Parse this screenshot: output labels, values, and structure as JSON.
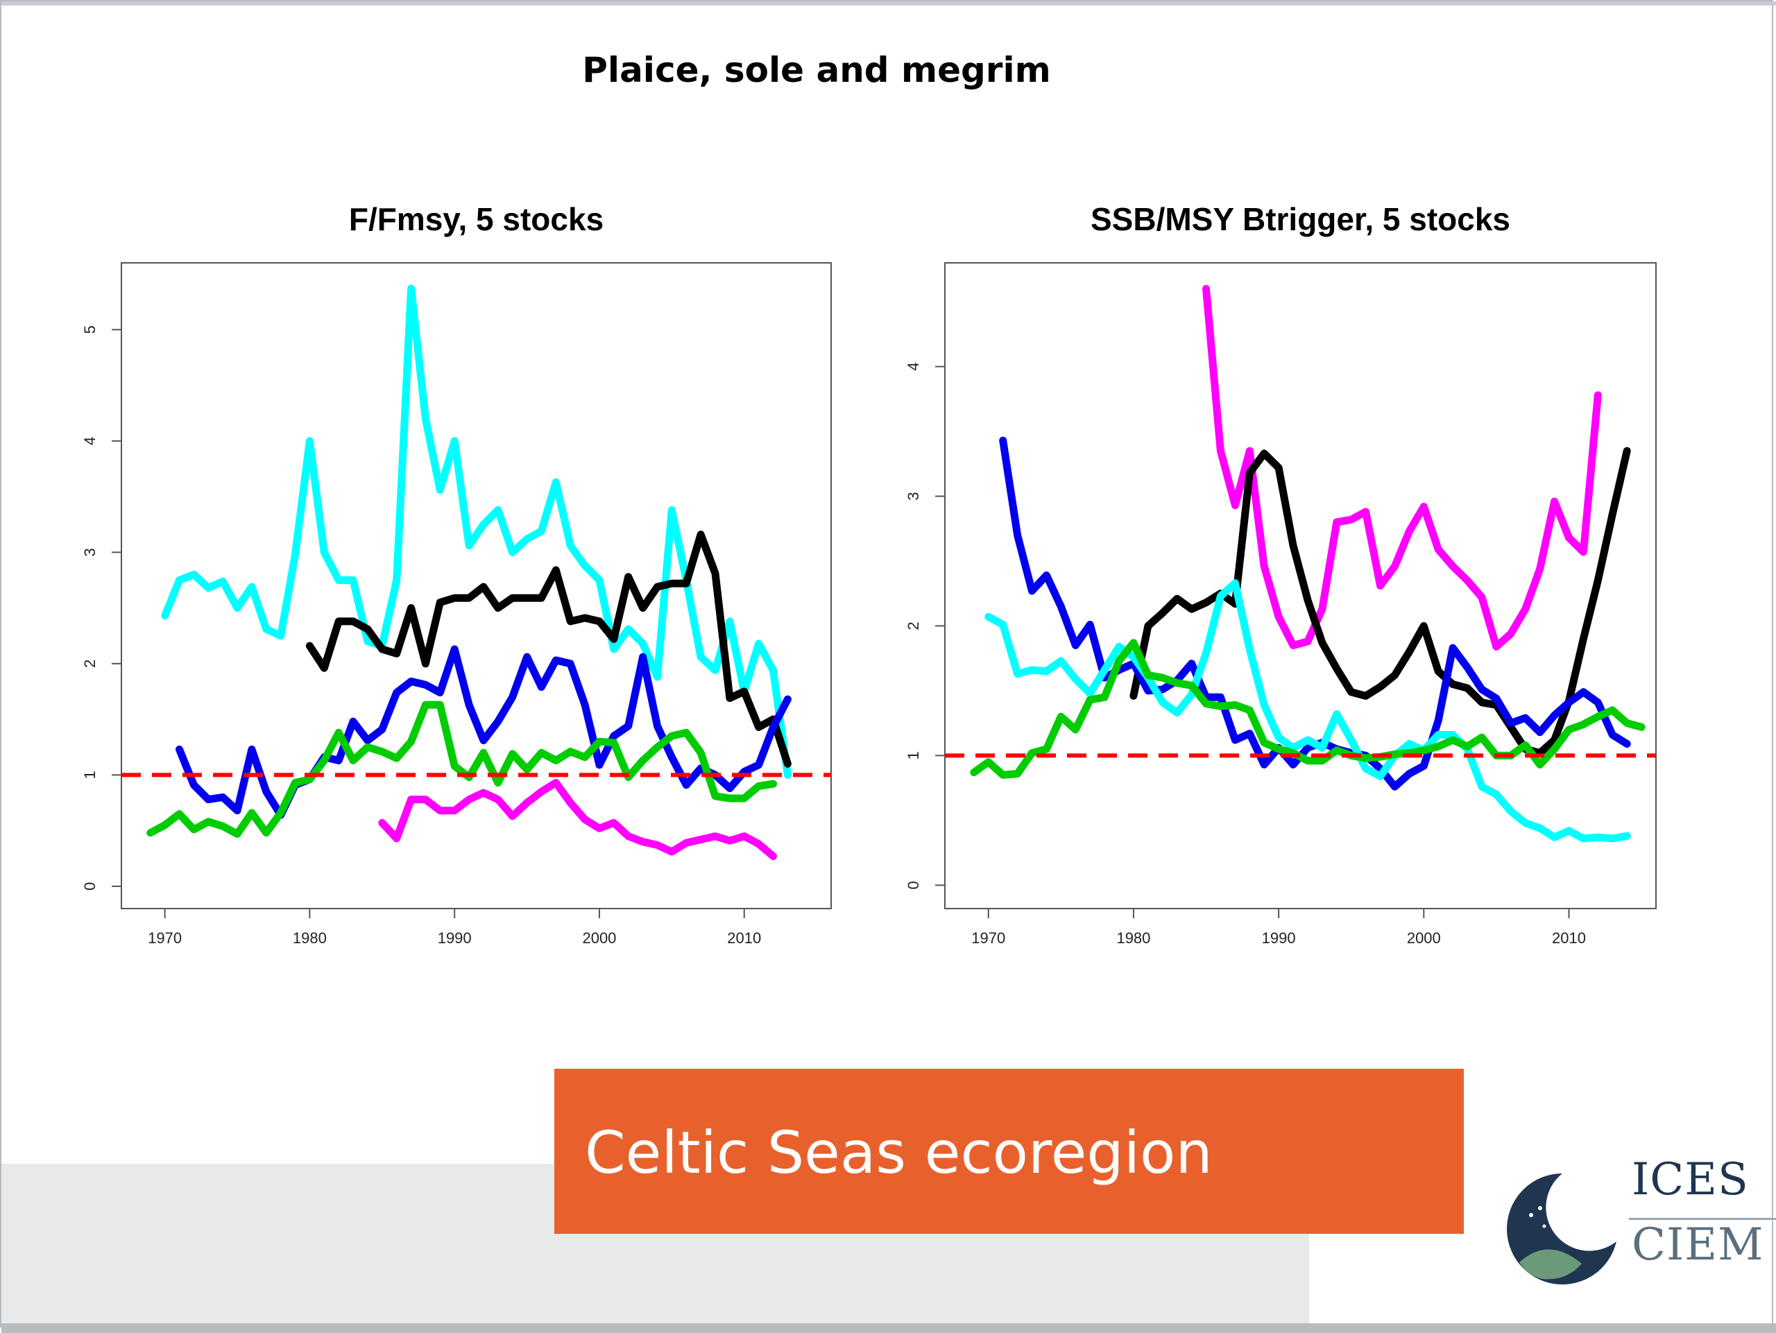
{
  "slide": {
    "title": "Plaice, sole and megrim",
    "banner_text": "Celtic Seas ecoregion",
    "logo_top": "ICES",
    "logo_bottom": "CIEM",
    "colors": {
      "banner": "#e8612d",
      "band": "#e7e9ea",
      "logo_dark": "#1f3550",
      "logo_green": "#6b9a7a"
    }
  },
  "chart_data": [
    {
      "type": "line",
      "title": "F/Fmsy,  5 stocks",
      "xlabel": "",
      "ylabel": "",
      "xlim": [
        1967,
        2016
      ],
      "ylim": [
        -0.2,
        5.6
      ],
      "xticks": [
        1970,
        1980,
        1990,
        2000,
        2010
      ],
      "yticks": [
        0,
        1,
        2,
        3,
        4,
        5
      ],
      "reference_line": {
        "y": 1,
        "color": "#ff0000",
        "style": "dashed"
      },
      "series": [
        {
          "name": "cyan",
          "color": "#00ffff",
          "x_start": 1970,
          "values": [
            2.43,
            2.75,
            2.8,
            2.68,
            2.74,
            2.5,
            2.69,
            2.31,
            2.25,
            2.98,
            4.0,
            3.0,
            2.75,
            2.75,
            2.2,
            2.16,
            2.75,
            5.37,
            4.2,
            3.56,
            4.0,
            3.06,
            3.25,
            3.38,
            3.0,
            3.12,
            3.19,
            3.63,
            3.06,
            2.88,
            2.75,
            2.13,
            2.31,
            2.18,
            1.88,
            3.38,
            2.75,
            2.06,
            1.94,
            2.38,
            1.75,
            2.18,
            1.94,
            1.0
          ]
        },
        {
          "name": "black",
          "color": "#000000",
          "x_start": 1980,
          "values": [
            2.16,
            1.96,
            2.38,
            2.38,
            2.31,
            2.13,
            2.09,
            2.5,
            2.0,
            2.55,
            2.59,
            2.59,
            2.69,
            2.5,
            2.59,
            2.59,
            2.59,
            2.84,
            2.38,
            2.41,
            2.38,
            2.22,
            2.78,
            2.5,
            2.69,
            2.72,
            2.72,
            3.16,
            2.81,
            1.69,
            1.75,
            1.43,
            1.5,
            1.1
          ]
        },
        {
          "name": "blue",
          "color": "#0000ee",
          "x_start": 1971,
          "values": [
            1.23,
            0.91,
            0.78,
            0.8,
            0.68,
            1.23,
            0.85,
            0.64,
            0.91,
            0.96,
            1.16,
            1.13,
            1.48,
            1.31,
            1.41,
            1.74,
            1.84,
            1.81,
            1.74,
            2.13,
            1.63,
            1.31,
            1.48,
            1.7,
            2.06,
            1.79,
            2.03,
            2.0,
            1.63,
            1.09,
            1.35,
            1.44,
            2.06,
            1.44,
            1.16,
            0.91,
            1.06,
            1.0,
            0.88,
            1.03,
            1.09,
            1.43,
            1.68
          ]
        },
        {
          "name": "green",
          "color": "#00cc00",
          "x_start": 1969,
          "values": [
            0.48,
            0.55,
            0.65,
            0.51,
            0.58,
            0.54,
            0.47,
            0.66,
            0.48,
            0.66,
            0.93,
            0.96,
            1.13,
            1.38,
            1.13,
            1.25,
            1.21,
            1.15,
            1.3,
            1.63,
            1.63,
            1.08,
            0.98,
            1.2,
            0.93,
            1.19,
            1.05,
            1.2,
            1.13,
            1.21,
            1.16,
            1.3,
            1.29,
            0.98,
            1.13,
            1.25,
            1.35,
            1.38,
            1.2,
            0.81,
            0.79,
            0.79,
            0.9,
            0.92
          ]
        },
        {
          "name": "magenta",
          "color": "#ff00ff",
          "x_start": 1985,
          "values": [
            0.57,
            0.43,
            0.78,
            0.78,
            0.68,
            0.68,
            0.78,
            0.84,
            0.78,
            0.63,
            0.75,
            0.85,
            0.93,
            0.75,
            0.6,
            0.52,
            0.57,
            0.45,
            0.4,
            0.37,
            0.31,
            0.39,
            0.42,
            0.45,
            0.41,
            0.45,
            0.38,
            0.27
          ]
        }
      ]
    },
    {
      "type": "line",
      "title": "SSB/MSY Btrigger, 5 stocks",
      "xlabel": "",
      "ylabel": "",
      "xlim": [
        1967,
        2016
      ],
      "ylim": [
        -0.18,
        4.8
      ],
      "xticks": [
        1970,
        1980,
        1990,
        2000,
        2010
      ],
      "yticks": [
        0,
        1,
        2,
        3,
        4
      ],
      "reference_line": {
        "y": 1,
        "color": "#ff0000",
        "style": "dashed"
      },
      "series": [
        {
          "name": "magenta",
          "color": "#ff00ff",
          "x_start": 1985,
          "values": [
            4.6,
            3.35,
            2.93,
            3.35,
            2.46,
            2.07,
            1.85,
            1.88,
            2.13,
            2.8,
            2.82,
            2.88,
            2.31,
            2.46,
            2.73,
            2.92,
            2.59,
            2.46,
            2.35,
            2.22,
            1.84,
            1.94,
            2.13,
            2.44,
            2.96,
            2.68,
            2.57,
            3.78
          ]
        },
        {
          "name": "black",
          "color": "#000000",
          "x_start": 1980,
          "values": [
            1.46,
            2.0,
            2.1,
            2.21,
            2.13,
            2.18,
            2.25,
            2.17,
            3.18,
            3.33,
            3.22,
            2.62,
            2.2,
            1.87,
            1.67,
            1.49,
            1.46,
            1.53,
            1.62,
            1.8,
            2.0,
            1.65,
            1.55,
            1.52,
            1.41,
            1.39,
            1.22,
            1.05,
            1.02,
            1.12,
            1.42,
            1.9,
            2.35,
            2.86,
            3.35
          ]
        },
        {
          "name": "blue",
          "color": "#0000ee",
          "x_start": 1971,
          "values": [
            3.43,
            2.7,
            2.27,
            2.39,
            2.15,
            1.85,
            2.01,
            1.6,
            1.66,
            1.71,
            1.5,
            1.51,
            1.58,
            1.71,
            1.45,
            1.45,
            1.12,
            1.17,
            0.93,
            1.06,
            0.93,
            1.06,
            1.1,
            1.05,
            1.02,
            1.0,
            0.9,
            0.76,
            0.86,
            0.92,
            1.27,
            1.83,
            1.68,
            1.51,
            1.44,
            1.25,
            1.29,
            1.18,
            1.31,
            1.41,
            1.49,
            1.41,
            1.16,
            1.09
          ]
        },
        {
          "name": "cyan",
          "color": "#00ffff",
          "x_start": 1970,
          "values": [
            2.07,
            2.01,
            1.63,
            1.66,
            1.65,
            1.73,
            1.59,
            1.48,
            1.66,
            1.84,
            1.76,
            1.6,
            1.41,
            1.33,
            1.47,
            1.79,
            2.23,
            2.33,
            1.82,
            1.39,
            1.14,
            1.06,
            1.12,
            1.06,
            1.32,
            1.12,
            0.9,
            0.84,
            1.0,
            1.09,
            1.04,
            1.16,
            1.16,
            1.05,
            0.76,
            0.7,
            0.57,
            0.48,
            0.44,
            0.37,
            0.42,
            0.36,
            0.37,
            0.36,
            0.38
          ]
        },
        {
          "name": "green",
          "color": "#00cc00",
          "x_start": 1969,
          "values": [
            0.87,
            0.95,
            0.85,
            0.86,
            1.02,
            1.05,
            1.3,
            1.2,
            1.43,
            1.45,
            1.73,
            1.87,
            1.62,
            1.6,
            1.56,
            1.54,
            1.4,
            1.38,
            1.39,
            1.35,
            1.1,
            1.05,
            1.02,
            0.96,
            0.96,
            1.04,
            1.0,
            0.98,
            0.99,
            1.01,
            1.02,
            1.04,
            1.07,
            1.12,
            1.07,
            1.14,
            1.0,
            1.0,
            1.08,
            0.93,
            1.05,
            1.2,
            1.24,
            1.3,
            1.35,
            1.25,
            1.22
          ]
        }
      ]
    }
  ]
}
